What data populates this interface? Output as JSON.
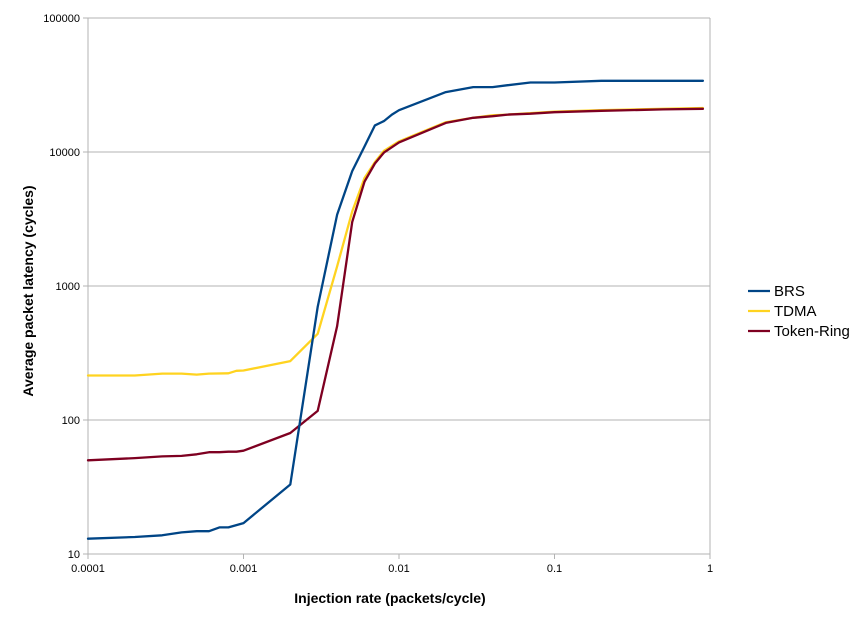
{
  "chart_data": {
    "type": "line",
    "xscale": "log",
    "yscale": "log",
    "xlim": [
      0.0001,
      1
    ],
    "ylim": [
      10,
      100000
    ],
    "grid": "horizontal major gridlines",
    "legend_position": "right",
    "xlabel": "Injection rate (packets/cycle)",
    "ylabel": "Average packet latency (cycles)",
    "x_ticks": [
      "0.0001",
      "0.001",
      "0.01",
      "0.1",
      "1"
    ],
    "y_ticks": [
      "10",
      "100",
      "1000",
      "10000",
      "100000"
    ],
    "series": [
      {
        "name": "BRS",
        "color": "#004586",
        "points": [
          [
            0.0001,
            13
          ],
          [
            0.0002,
            13.4
          ],
          [
            0.0003,
            13.8
          ],
          [
            0.0004,
            14.5
          ],
          [
            0.0005,
            14.8
          ],
          [
            0.0006,
            14.8
          ],
          [
            0.0007,
            15.8
          ],
          [
            0.0008,
            15.8
          ],
          [
            0.001,
            17
          ],
          [
            0.002,
            33
          ],
          [
            0.003,
            700
          ],
          [
            0.004,
            3400
          ],
          [
            0.005,
            7200
          ],
          [
            0.006,
            11000
          ],
          [
            0.007,
            15800
          ],
          [
            0.008,
            17000
          ],
          [
            0.009,
            19000
          ],
          [
            0.01,
            20500
          ],
          [
            0.02,
            28000
          ],
          [
            0.03,
            30500
          ],
          [
            0.04,
            30500
          ],
          [
            0.05,
            31500
          ],
          [
            0.07,
            33000
          ],
          [
            0.1,
            33000
          ],
          [
            0.2,
            34000
          ],
          [
            0.5,
            34000
          ],
          [
            0.9,
            34000
          ]
        ]
      },
      {
        "name": "TDMA",
        "color": "#ffd320",
        "points": [
          [
            0.0001,
            215
          ],
          [
            0.0002,
            215
          ],
          [
            0.0003,
            222
          ],
          [
            0.0004,
            222
          ],
          [
            0.0005,
            218
          ],
          [
            0.0006,
            222
          ],
          [
            0.0008,
            223
          ],
          [
            0.0009,
            233
          ],
          [
            0.001,
            234
          ],
          [
            0.002,
            275
          ],
          [
            0.003,
            440
          ],
          [
            0.004,
            1400
          ],
          [
            0.005,
            3600
          ],
          [
            0.006,
            6400
          ],
          [
            0.007,
            8400
          ],
          [
            0.008,
            10200
          ],
          [
            0.01,
            12000
          ],
          [
            0.02,
            16700
          ],
          [
            0.03,
            18000
          ],
          [
            0.04,
            18800
          ],
          [
            0.05,
            19000
          ],
          [
            0.07,
            19500
          ],
          [
            0.1,
            20000
          ],
          [
            0.2,
            20500
          ],
          [
            0.5,
            21000
          ],
          [
            0.9,
            21300
          ]
        ]
      },
      {
        "name": "Token-Ring",
        "color": "#7e0021",
        "points": [
          [
            0.0001,
            50
          ],
          [
            0.0002,
            52
          ],
          [
            0.0003,
            53.5
          ],
          [
            0.0004,
            54
          ],
          [
            0.0005,
            55.5
          ],
          [
            0.0006,
            57.5
          ],
          [
            0.0007,
            57.5
          ],
          [
            0.0008,
            58
          ],
          [
            0.0009,
            58
          ],
          [
            0.001,
            59
          ],
          [
            0.002,
            80
          ],
          [
            0.003,
            117
          ],
          [
            0.004,
            500
          ],
          [
            0.005,
            3000
          ],
          [
            0.006,
            6000
          ],
          [
            0.007,
            8200
          ],
          [
            0.008,
            9900
          ],
          [
            0.01,
            11800
          ],
          [
            0.02,
            16500
          ],
          [
            0.03,
            18000
          ],
          [
            0.04,
            18500
          ],
          [
            0.05,
            19000
          ],
          [
            0.07,
            19300
          ],
          [
            0.1,
            19800
          ],
          [
            0.2,
            20300
          ],
          [
            0.5,
            20800
          ],
          [
            0.9,
            21000
          ]
        ]
      }
    ]
  }
}
